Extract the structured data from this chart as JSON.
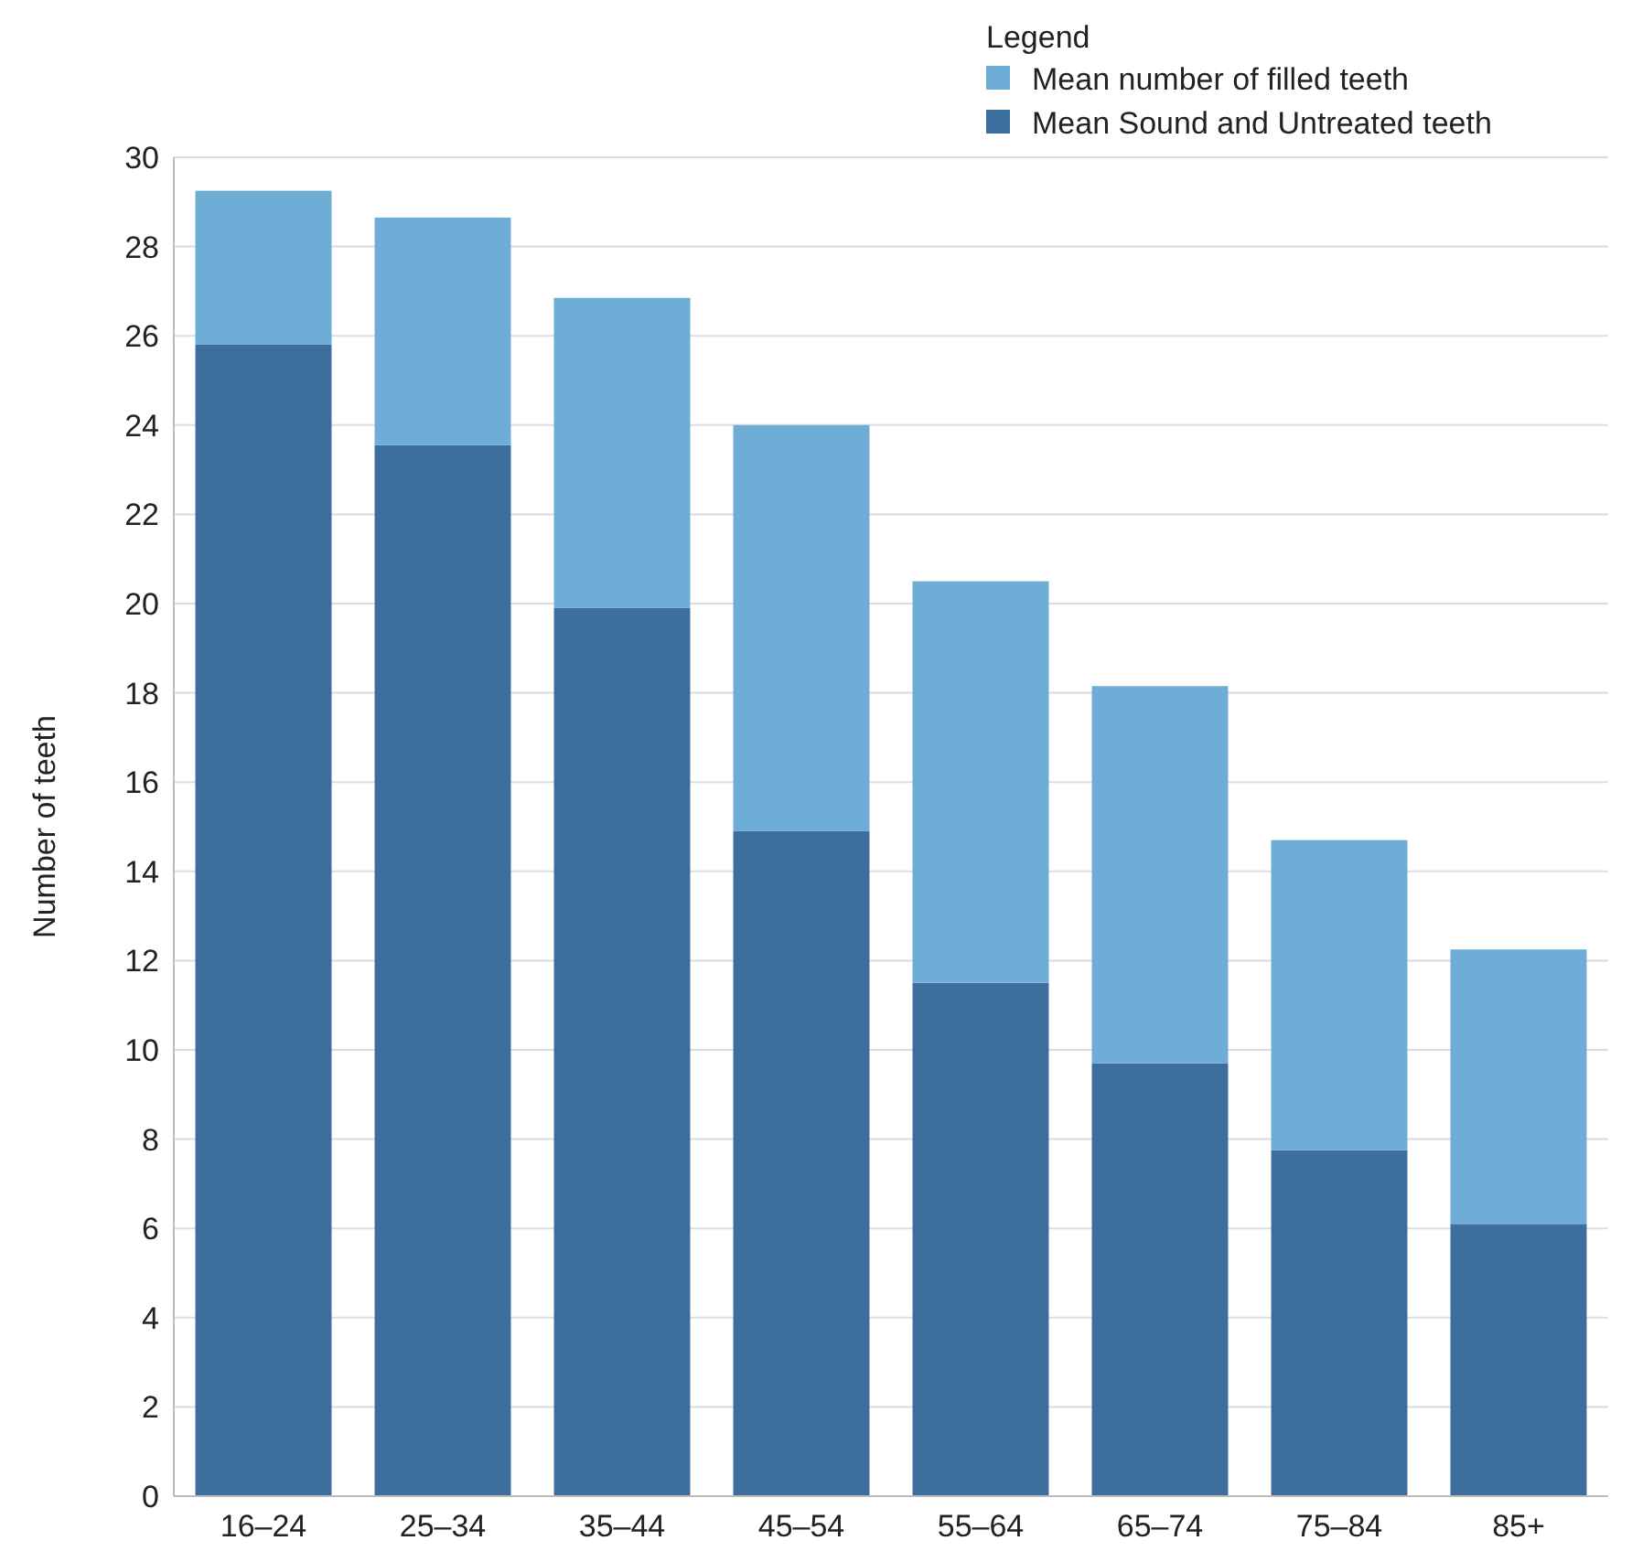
{
  "chart_data": {
    "type": "bar",
    "stacked": true,
    "ylabel": "Number of teeth",
    "legend_title": "Legend",
    "legend": "top right",
    "grid": "y",
    "categories": [
      "16–24",
      "25–34",
      "35–44",
      "45–54",
      "55–64",
      "65–74",
      "75–84",
      "85+"
    ],
    "series": [
      {
        "name": "Mean Sound and Untreated teeth",
        "color": "#3d6f9e",
        "values": [
          25.8,
          23.55,
          19.9,
          14.9,
          11.5,
          9.7,
          7.75,
          6.1
        ]
      },
      {
        "name": "Mean number of filled teeth",
        "color": "#6eaed6",
        "values": [
          3.45,
          5.1,
          6.95,
          9.1,
          9.0,
          8.45,
          6.95,
          6.15
        ]
      }
    ],
    "ylim": [
      0,
      30
    ],
    "yticks": [
      0,
      2,
      4,
      6,
      8,
      10,
      12,
      14,
      16,
      18,
      20,
      22,
      24,
      26,
      28,
      30
    ]
  }
}
